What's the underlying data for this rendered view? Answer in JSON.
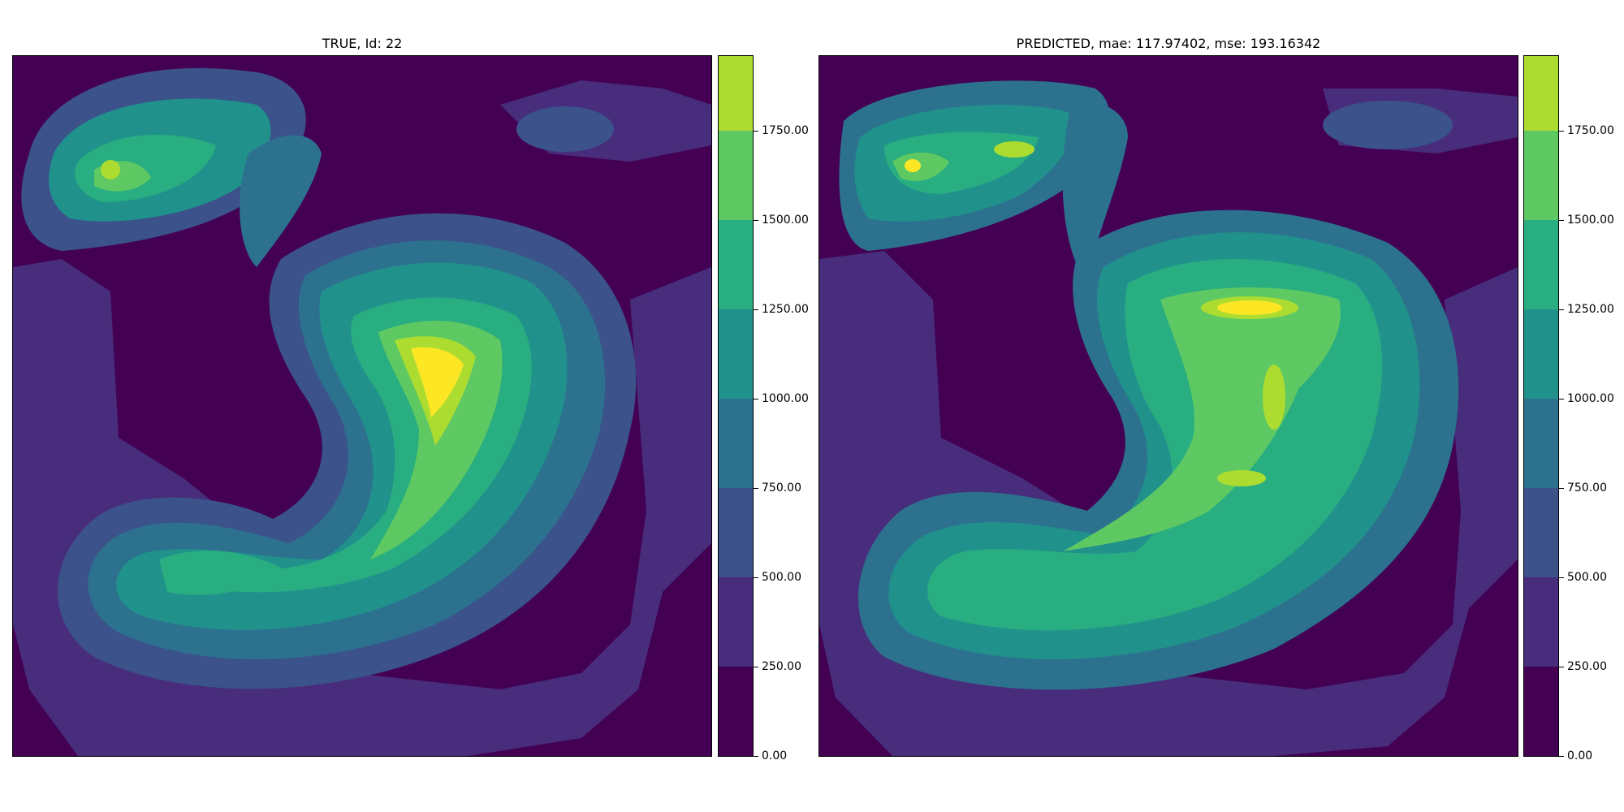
{
  "chart_data": [
    {
      "type": "heatmap",
      "title": "TRUE, Id: 22",
      "colormap": [
        "#440154",
        "#472d7b",
        "#3b528b",
        "#2c728e",
        "#21918c",
        "#28ae80",
        "#5ec962",
        "#addc30",
        "#fde725"
      ],
      "levels": [
        0,
        250,
        500,
        750,
        1000,
        1250,
        1500,
        1750,
        2000
      ],
      "colorbar": {
        "ticks": [
          0,
          250,
          500,
          750,
          1000,
          1250,
          1500,
          1750
        ],
        "tick_labels": [
          "0.00",
          "250.00",
          "500.00",
          "750.00",
          "1000.00",
          "1250.00",
          "1500.00",
          "1750.00"
        ],
        "range": [
          0,
          1960
        ]
      },
      "xlim": [
        0,
        1
      ],
      "ylim": [
        0,
        1
      ]
    },
    {
      "type": "heatmap",
      "title": "PREDICTED, mae: 117.97402, mse: 193.16342",
      "colormap": [
        "#440154",
        "#472d7b",
        "#3b528b",
        "#2c728e",
        "#21918c",
        "#28ae80",
        "#5ec962",
        "#addc30",
        "#fde725"
      ],
      "levels": [
        0,
        250,
        500,
        750,
        1000,
        1250,
        1500,
        1750,
        2000
      ],
      "colorbar": {
        "ticks": [
          0,
          250,
          500,
          750,
          1000,
          1250,
          1500,
          1750
        ],
        "tick_labels": [
          "0.00",
          "250.00",
          "500.00",
          "750.00",
          "1000.00",
          "1250.00",
          "1500.00",
          "1750.00"
        ],
        "range": [
          0,
          1960
        ]
      },
      "xlim": [
        0,
        1
      ],
      "ylim": [
        0,
        1
      ]
    }
  ]
}
